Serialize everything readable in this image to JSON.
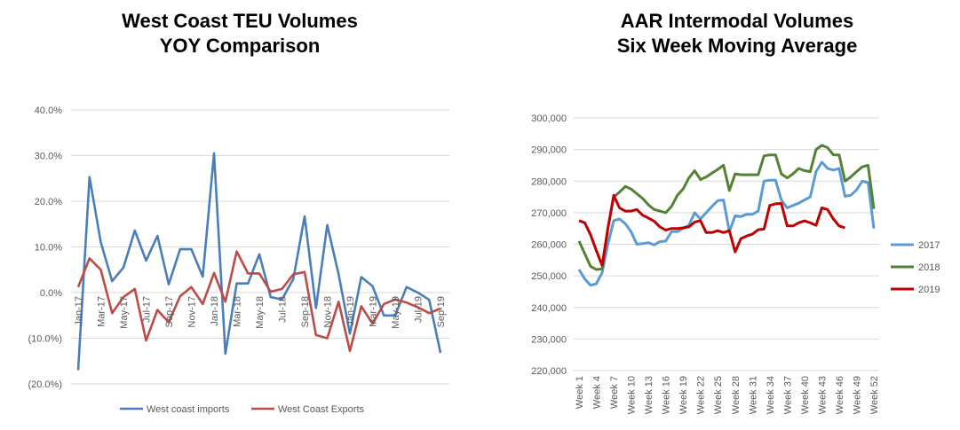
{
  "chart_data": [
    {
      "type": "line",
      "title_lines": [
        "West Coast TEU Volumes",
        "YOY Comparison"
      ],
      "ylim": [
        -20,
        40
      ],
      "y_ticks": [
        "(20.0%)",
        "(10.0%)",
        "0.0%",
        "10.0%",
        "20.0%",
        "30.0%",
        "40.0%"
      ],
      "y_tick_values": [
        -20,
        -10,
        0,
        10,
        20,
        30,
        40
      ],
      "x": [
        "Jan-17",
        "Feb-17",
        "Mar-17",
        "Apr-17",
        "May-17",
        "Jun-17",
        "Jul-17",
        "Aug-17",
        "Sep-17",
        "Oct-17",
        "Nov-17",
        "Dec-17",
        "Jan-18",
        "Feb-18",
        "Mar-18",
        "Apr-18",
        "May-18",
        "Jun-18",
        "Jul-18",
        "Aug-18",
        "Sep-18",
        "Oct-18",
        "Nov-18",
        "Dec-18",
        "Jan-19",
        "Feb-19",
        "Mar-19",
        "Apr-19",
        "May-19",
        "Jun-19",
        "Jul-19",
        "Aug-19",
        "Sep-19"
      ],
      "x_tick_labels": [
        "Jan-17",
        "Mar-17",
        "May-17",
        "Jul-17",
        "Sep-17",
        "Nov-17",
        "Jan-18",
        "Mar-18",
        "May-18",
        "Jul-18",
        "Sep-18",
        "Nov-18",
        "Jan-19",
        "Mar-19",
        "May-19",
        "Jul-19",
        "Sep-19"
      ],
      "grid": "horizontal",
      "legend_position": "bottom",
      "series": [
        {
          "name": "West coast imports",
          "color": "#4a7ebb",
          "values": [
            -17.0,
            25.3,
            11.0,
            2.5,
            5.5,
            13.6,
            7.0,
            12.4,
            1.8,
            9.5,
            9.5,
            3.5,
            30.5,
            -13.4,
            2.0,
            2.0,
            8.4,
            -1.0,
            -1.5,
            3.0,
            16.7,
            -3.4,
            14.8,
            4.0,
            -9.0,
            3.4,
            1.4,
            -5.0,
            -5.0,
            1.2,
            0.0,
            -1.6,
            -13.2
          ]
        },
        {
          "name": "West Coast Exports",
          "color": "#be4b48",
          "values": [
            1.2,
            7.5,
            5.0,
            -4.5,
            -1.0,
            0.8,
            -10.5,
            -3.8,
            -6.5,
            -0.8,
            1.2,
            -2.5,
            4.3,
            -2.0,
            9.0,
            4.2,
            4.2,
            0.2,
            0.8,
            4.0,
            4.5,
            -9.3,
            -10.0,
            -2.0,
            -12.8,
            -3.0,
            -6.8,
            -2.5,
            -1.5,
            -2.2,
            -3.2,
            -4.5,
            -3.5
          ]
        }
      ]
    },
    {
      "type": "line",
      "title_lines": [
        "AAR Intermodal Volumes",
        "Six Week Moving Average"
      ],
      "ylim": [
        220000,
        300000
      ],
      "y_ticks": [
        "220,000",
        "230,000",
        "240,000",
        "250,000",
        "260,000",
        "270,000",
        "280,000",
        "290,000",
        "300,000"
      ],
      "y_tick_values": [
        220000,
        230000,
        240000,
        250000,
        260000,
        270000,
        280000,
        290000,
        300000
      ],
      "x_count": 52,
      "x_tick_labels": [
        "Week 1",
        "Week 4",
        "Week 7",
        "Week 10",
        "Week 13",
        "Week 16",
        "Week 19",
        "Week 22",
        "Week 25",
        "Week 28",
        "Week 31",
        "Week 34",
        "Week 37",
        "Week 40",
        "Week 43",
        "Week 46",
        "Week 49",
        "Week 52"
      ],
      "grid": "horizontal",
      "legend_position": "right",
      "series": [
        {
          "name": "2017",
          "color": "#5b9bd5",
          "values": [
            252000,
            249000,
            247000,
            247500,
            251000,
            260000,
            267500,
            268000,
            266500,
            264000,
            260000,
            260200,
            260500,
            259800,
            260800,
            261000,
            264000,
            264000,
            265000,
            266000,
            270000,
            268000,
            270000,
            272000,
            273800,
            274000,
            264000,
            269000,
            268800,
            269500,
            269500,
            270500,
            280000,
            280300,
            280300,
            274000,
            271500,
            272300,
            273000,
            274000,
            275000,
            283000,
            286000,
            284000,
            283500,
            284000,
            275200,
            275500,
            277200,
            280000,
            279500,
            265000
          ]
        },
        {
          "name": "2018",
          "color": "#548235",
          "values": [
            261000,
            257000,
            253000,
            252000,
            252200,
            265000,
            275000,
            276500,
            278300,
            277500,
            276000,
            274500,
            272500,
            271000,
            270500,
            270000,
            272000,
            275500,
            277500,
            281000,
            283300,
            280500,
            281300,
            282500,
            283700,
            285000,
            277000,
            282300,
            282000,
            282000,
            282000,
            282000,
            288000,
            288300,
            288300,
            282300,
            281000,
            282300,
            284000,
            283300,
            283000,
            290000,
            291300,
            290600,
            288300,
            288300,
            280000,
            281300,
            283000,
            284500,
            285000,
            271200
          ]
        },
        {
          "name": "2019",
          "color": "#c00000",
          "values": [
            267500,
            266800,
            263000,
            258000,
            253300,
            265000,
            275500,
            271500,
            270500,
            270500,
            271000,
            269200,
            268300,
            267300,
            265500,
            264500,
            265000,
            265000,
            265200,
            265500,
            267000,
            267500,
            263700,
            263700,
            264300,
            263700,
            264300,
            257600,
            261800,
            262600,
            263200,
            264600,
            264800,
            272300,
            272800,
            272900,
            265800,
            265800,
            266800,
            267400,
            266800,
            266000,
            271500,
            271000,
            268000,
            265800,
            265200
          ]
        }
      ]
    }
  ]
}
